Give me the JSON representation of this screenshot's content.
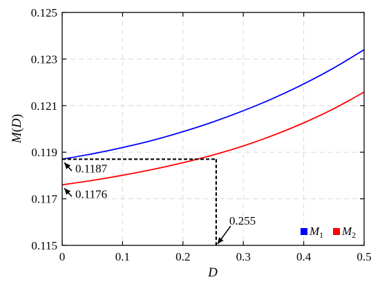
{
  "chart_data": {
    "type": "line",
    "xlabel": "D",
    "ylabel_parts": [
      "M",
      "(",
      "D",
      ")"
    ],
    "xlim": [
      0,
      0.5
    ],
    "ylim": [
      0.115,
      0.125
    ],
    "x_ticks": [
      0,
      0.1,
      0.2,
      0.3,
      0.4,
      0.5
    ],
    "x_tick_labels": [
      "0",
      "0.1",
      "0.2",
      "0.3",
      "0.4",
      "0.5"
    ],
    "y_ticks": [
      0.115,
      0.117,
      0.119,
      0.121,
      0.123,
      0.125
    ],
    "y_tick_labels": [
      "0.115",
      "0.117",
      "0.119",
      "0.121",
      "0.123",
      "0.125"
    ],
    "grid": true,
    "legend_position": "bottom-right",
    "series": [
      {
        "name": "M1",
        "label_base": "M",
        "label_sub": "1",
        "color": "#0000ff",
        "x": [
          0,
          0.05,
          0.1,
          0.15,
          0.2,
          0.25,
          0.3,
          0.35,
          0.4,
          0.45,
          0.5
        ],
        "y": [
          0.1187,
          0.11893,
          0.1192,
          0.11951,
          0.11988,
          0.1203,
          0.12078,
          0.12132,
          0.12193,
          0.12262,
          0.1234
        ]
      },
      {
        "name": "M2",
        "label_base": "M",
        "label_sub": "2",
        "color": "#ff0000",
        "x": [
          0,
          0.05,
          0.1,
          0.15,
          0.2,
          0.25,
          0.3,
          0.35,
          0.4,
          0.45,
          0.5
        ],
        "y": [
          0.1176,
          0.11779,
          0.11801,
          0.11826,
          0.11855,
          0.11888,
          0.11927,
          0.11973,
          0.12026,
          0.12087,
          0.12158
        ]
      }
    ],
    "annotations": [
      {
        "text": "0.1187",
        "x": 0,
        "y": 0.1187
      },
      {
        "text": "0.1176",
        "x": 0,
        "y": 0.1176
      },
      {
        "text": "0.255",
        "x": 0.255,
        "y": 0.115
      }
    ],
    "reference_lines": {
      "x": 0.255,
      "y": 0.1187
    }
  }
}
